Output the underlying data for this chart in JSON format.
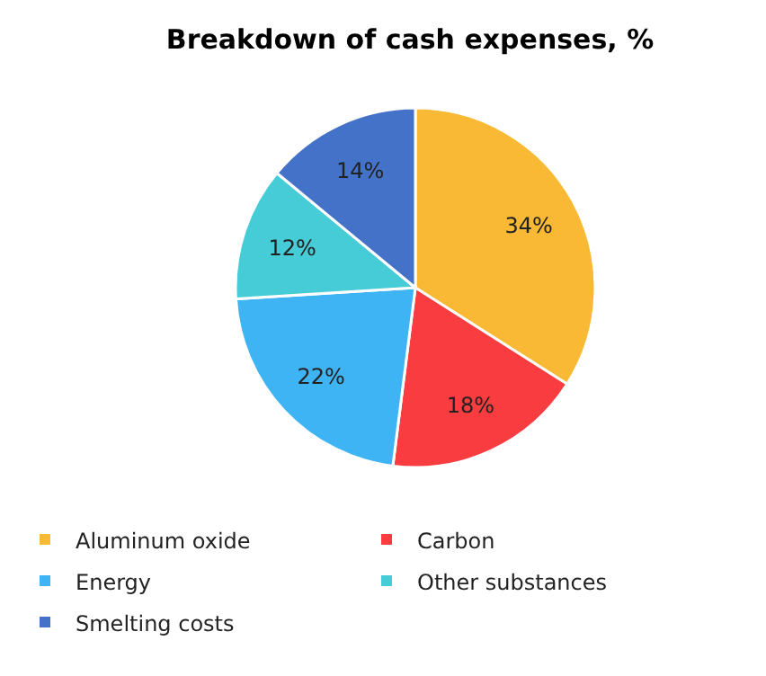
{
  "chart_data": {
    "type": "pie",
    "title": "Breakdown of cash expenses, %",
    "categories": [
      "Aluminum oxide",
      "Carbon",
      "Energy",
      "Other substances",
      "Smelting costs"
    ],
    "values": [
      34,
      18,
      22,
      12,
      14
    ],
    "colors": [
      "#f9b935",
      "#f83c40",
      "#3fb4f5",
      "#45ccd6",
      "#4472c9"
    ],
    "value_labels": [
      "34%",
      "18%",
      "22%",
      "12%",
      "14%"
    ],
    "legend": "bottom"
  }
}
